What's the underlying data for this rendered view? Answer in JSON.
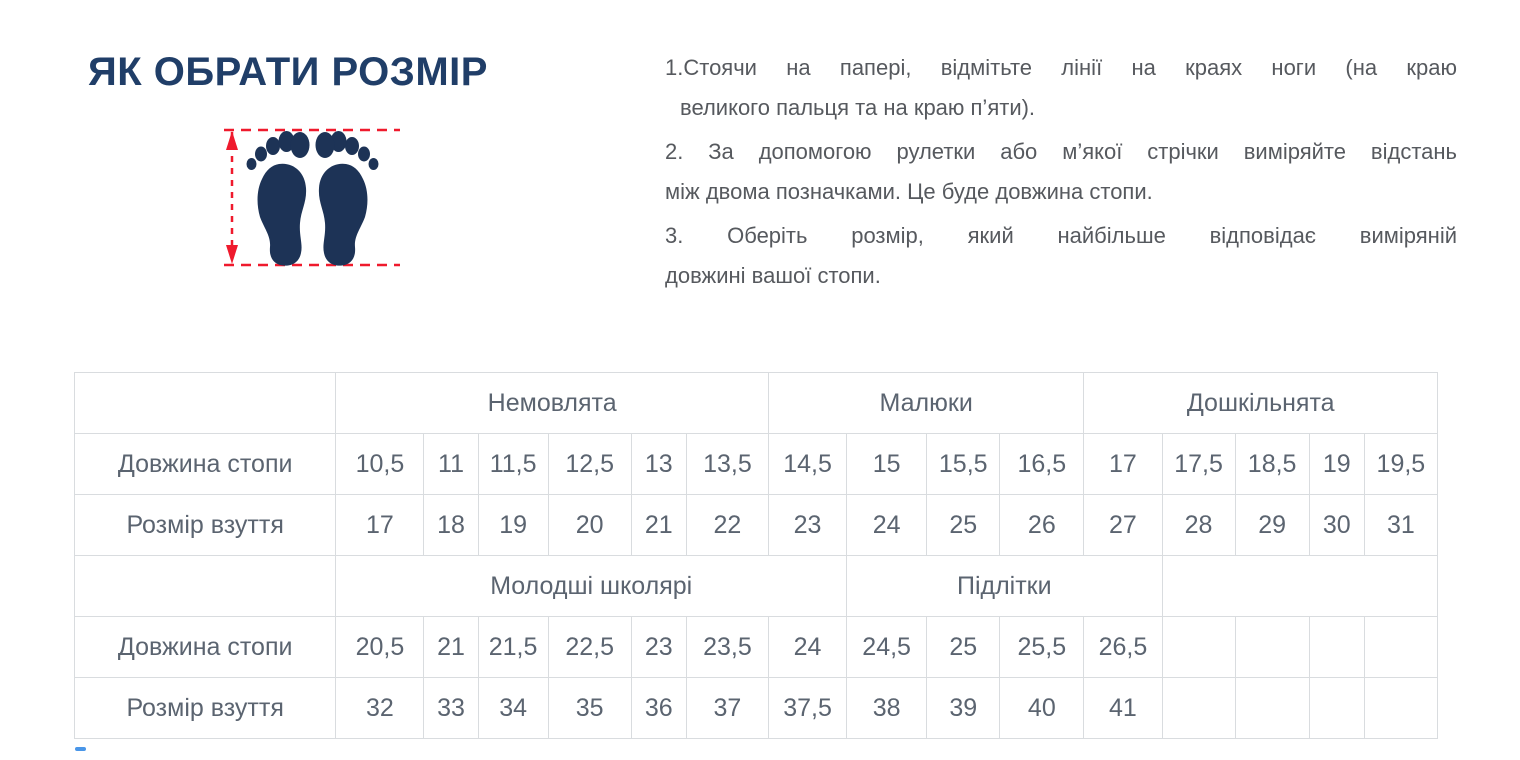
{
  "header": {
    "title": "ЯК ОБРАТИ РОЗМІР"
  },
  "instructions": {
    "lines": [
      "1.Стоячи на папері, відмітьте лінії на краях ноги (на краю",
      "великого пальця та на краю п’яти).",
      "2. За допомогою рулетки або м’якої стрічки виміряйте відстань",
      "між двома позначками. Це буде довжина стопи.",
      "3. Оберіть розмір, який найбільше відповідає виміряній",
      "довжині вашої стопи."
    ]
  },
  "size_table": {
    "rows": [
      {
        "type": "group",
        "cells": [
          {
            "text": "",
            "span": 1
          },
          {
            "text": "Немовлята",
            "span": 6
          },
          {
            "text": "Малюки",
            "span": 4
          },
          {
            "text": "Дошкільнята",
            "span": 5
          }
        ]
      },
      {
        "type": "data",
        "label": "Довжина стопи",
        "values": [
          "10,5",
          "11",
          "11,5",
          "12,5",
          "13",
          "13,5",
          "14,5",
          "15",
          "15,5",
          "16,5",
          "17",
          "17,5",
          "18,5",
          "19",
          "19,5"
        ]
      },
      {
        "type": "data",
        "label": "Розмір взуття",
        "values": [
          "17",
          "18",
          "19",
          "20",
          "21",
          "22",
          "23",
          "24",
          "25",
          "26",
          "27",
          "28",
          "29",
          "30",
          "31"
        ]
      },
      {
        "type": "group",
        "cells": [
          {
            "text": "",
            "span": 1
          },
          {
            "text": "Молодші школярі",
            "span": 7
          },
          {
            "text": "Підлітки",
            "span": 4
          },
          {
            "text": "",
            "span": 4
          }
        ]
      },
      {
        "type": "data",
        "label": "Довжина стопи",
        "values": [
          "20,5",
          "21",
          "21,5",
          "22,5",
          "23",
          "23,5",
          "24",
          "24,5",
          "25",
          "25,5",
          "26,5",
          "",
          "",
          "",
          ""
        ]
      },
      {
        "type": "data",
        "label": "Розмір взуття",
        "values": [
          "32",
          "33",
          "34",
          "35",
          "36",
          "37",
          "37,5",
          "38",
          "39",
          "40",
          "41",
          "",
          "",
          "",
          ""
        ]
      }
    ]
  },
  "colors": {
    "title_navy": "#203e68",
    "footprint_navy": "#1d3356",
    "measure_red": "#ef1a2d",
    "table_text": "#5b6470",
    "table_border": "#d9dcdf",
    "instruction_gray": "#56595e",
    "bottom_dash_blue": "#4a96e8"
  }
}
